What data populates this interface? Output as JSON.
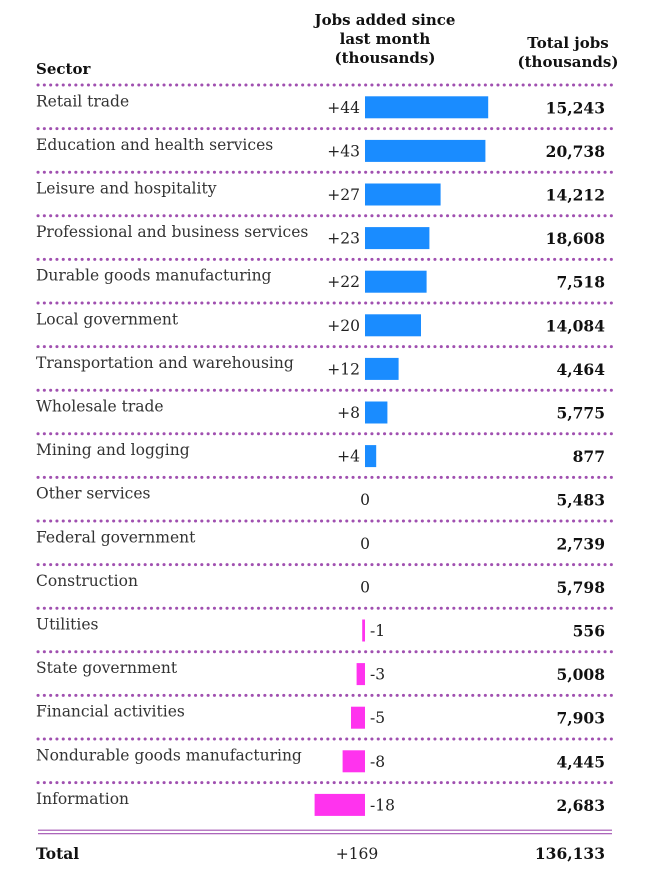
{
  "chart_data": {
    "type": "table",
    "columns": {
      "sector": "Sector",
      "change": "Jobs added since last month (thousands)",
      "total": "Total jobs (thousands)"
    },
    "rows": [
      {
        "sector": "Retail trade",
        "change": 44,
        "change_label": "+44",
        "total": "15,243"
      },
      {
        "sector": "Education and health services",
        "change": 43,
        "change_label": "+43",
        "total": "20,738"
      },
      {
        "sector": "Leisure and hospitality",
        "change": 27,
        "change_label": "+27",
        "total": "14,212"
      },
      {
        "sector": "Professional and business services",
        "change": 23,
        "change_label": "+23",
        "total": "18,608"
      },
      {
        "sector": "Durable goods manufacturing",
        "change": 22,
        "change_label": "+22",
        "total": "7,518"
      },
      {
        "sector": "Local government",
        "change": 20,
        "change_label": "+20",
        "total": "14,084"
      },
      {
        "sector": "Transportation and warehousing",
        "change": 12,
        "change_label": "+12",
        "total": "4,464"
      },
      {
        "sector": "Wholesale trade",
        "change": 8,
        "change_label": "+8",
        "total": "5,775"
      },
      {
        "sector": "Mining and logging",
        "change": 4,
        "change_label": "+4",
        "total": "877"
      },
      {
        "sector": "Other services",
        "change": 0,
        "change_label": "0",
        "total": "5,483"
      },
      {
        "sector": "Federal government",
        "change": 0,
        "change_label": "0",
        "total": "2,739"
      },
      {
        "sector": "Construction",
        "change": 0,
        "change_label": "0",
        "total": "5,798"
      },
      {
        "sector": "Utilities",
        "change": -1,
        "change_label": "-1",
        "total": "556"
      },
      {
        "sector": "State government",
        "change": -3,
        "change_label": "-3",
        "total": "5,008"
      },
      {
        "sector": "Financial activities",
        "change": -5,
        "change_label": "-5",
        "total": "7,903"
      },
      {
        "sector": "Nondurable goods manufacturing",
        "change": -8,
        "change_label": "-8",
        "total": "4,445"
      },
      {
        "sector": "Information",
        "change": -18,
        "change_label": "-18",
        "total": "2,683"
      }
    ],
    "summary": {
      "sector": "Total",
      "change_label": "+169",
      "total": "136,133"
    },
    "colors": {
      "positive": "#1a8cff",
      "negative": "#ff33ee",
      "separator": "#a050b0"
    }
  }
}
